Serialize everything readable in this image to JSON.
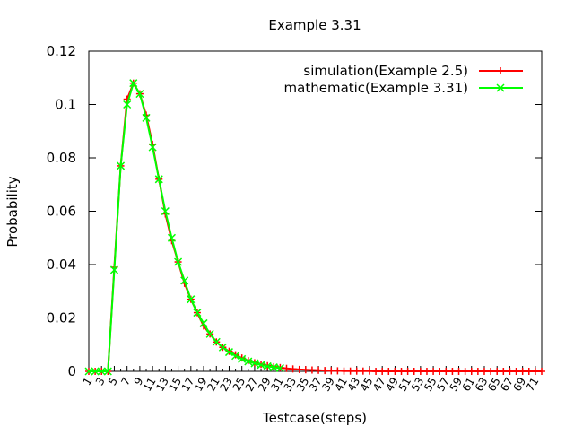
{
  "chart_data": {
    "type": "line",
    "title": "Example 3.31",
    "xlabel": "Testcase(steps)",
    "ylabel": "Probability",
    "ylim": [
      0,
      0.12
    ],
    "y_ticks": [
      "0",
      "0.02",
      "0.04",
      "0.06",
      "0.08",
      "0.1",
      "0.12"
    ],
    "x_tick_labels": [
      "1",
      "3",
      "5",
      "7",
      "9",
      "11",
      "13",
      "15",
      "17",
      "19",
      "21",
      "23",
      "25",
      "27",
      "29",
      "31",
      "33",
      "35",
      "37",
      "39",
      "41",
      "43",
      "45",
      "47",
      "49",
      "51",
      "53",
      "55",
      "57",
      "59",
      "61",
      "63",
      "65",
      "67",
      "69",
      "71"
    ],
    "grid": false,
    "legend_position": "top-right",
    "series": [
      {
        "name": "simulation(Example 2.5)",
        "color": "#ff0000",
        "marker": "plus",
        "x": [
          1,
          2,
          3,
          4,
          5,
          6,
          7,
          8,
          9,
          10,
          11,
          12,
          13,
          14,
          15,
          16,
          17,
          18,
          19,
          20,
          21,
          22,
          23,
          24,
          25,
          26,
          27,
          28,
          29,
          30,
          31,
          32,
          33,
          34,
          35,
          36,
          37,
          38,
          39,
          40,
          41,
          42,
          43,
          44,
          45,
          46,
          47,
          48,
          49,
          50,
          51,
          52,
          53,
          54,
          55,
          56,
          57,
          58,
          59,
          60,
          61,
          62,
          63,
          64,
          65,
          66,
          67,
          68,
          69,
          70,
          71,
          72
        ],
        "y": [
          0,
          0,
          0,
          0,
          0.039,
          0.077,
          0.102,
          0.108,
          0.104,
          0.096,
          0.085,
          0.072,
          0.059,
          0.049,
          0.041,
          0.033,
          0.027,
          0.022,
          0.017,
          0.014,
          0.011,
          0.009,
          0.0075,
          0.0062,
          0.005,
          0.004,
          0.0032,
          0.0026,
          0.0021,
          0.0017,
          0.0014,
          0.0011,
          0.0009,
          0.0007,
          0.0006,
          0.0005,
          0.0004,
          0.0003,
          0.0002,
          0.0002,
          0.0001,
          0.0001,
          0.0001,
          0.0001,
          0.0001,
          0,
          0,
          0,
          0,
          0,
          0,
          0,
          0,
          0,
          0,
          0,
          0,
          0,
          0,
          0,
          0,
          0,
          0,
          0,
          0,
          0,
          0,
          0,
          0,
          0,
          0,
          0
        ]
      },
      {
        "name": "mathematic(Example 3.31)",
        "color": "#00ff00",
        "marker": "cross",
        "x": [
          1,
          2,
          3,
          4,
          5,
          6,
          7,
          8,
          9,
          10,
          11,
          12,
          13,
          14,
          15,
          16,
          17,
          18,
          19,
          20,
          21,
          22,
          23,
          24,
          25,
          26,
          27,
          28,
          29,
          30,
          31
        ],
        "y": [
          0,
          0,
          0,
          0,
          0.038,
          0.077,
          0.1,
          0.108,
          0.104,
          0.095,
          0.084,
          0.072,
          0.06,
          0.05,
          0.041,
          0.034,
          0.027,
          0.022,
          0.018,
          0.014,
          0.011,
          0.009,
          0.0072,
          0.0058,
          0.0046,
          0.0037,
          0.003,
          0.0024,
          0.0019,
          0.0015,
          0.0012
        ]
      }
    ]
  }
}
